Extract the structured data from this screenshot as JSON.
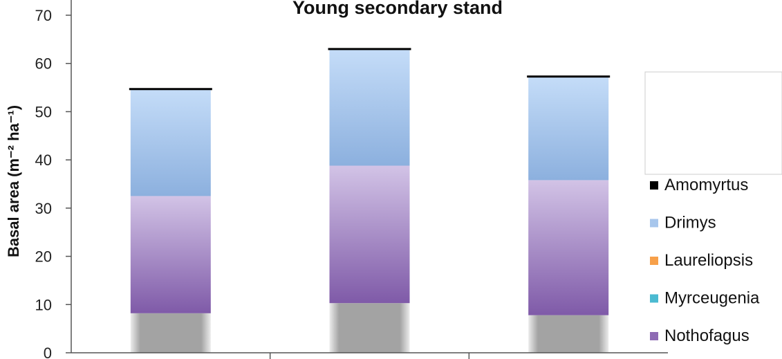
{
  "chart_data": {
    "type": "bar",
    "stacked": true,
    "title": "Young secondary stand",
    "xlabel": "",
    "ylabel": "Basal area (m⁻² ha⁻¹)",
    "ylim": [
      0,
      70
    ],
    "yticks": [
      0,
      10,
      20,
      30,
      40,
      50,
      60,
      70
    ],
    "categories": [
      "",
      "",
      ""
    ],
    "series": [
      {
        "name": "",
        "color": "#a0a0a0",
        "values": [
          8.2,
          10.3,
          7.8
        ]
      },
      {
        "name": "Nothofagus",
        "color": "#8e6bb4",
        "values": [
          24.3,
          28.5,
          28.0
        ]
      },
      {
        "name": "Myrceugenia",
        "color": "#4bbad1",
        "values": [
          0,
          0,
          0
        ]
      },
      {
        "name": "Laureliopsis",
        "color": "#f7a04a",
        "values": [
          0,
          0,
          0
        ]
      },
      {
        "name": "Drimys",
        "color": "#a7c6ec",
        "values": [
          22.0,
          24.0,
          21.3
        ]
      },
      {
        "name": "Amomyrtus",
        "color": "#000000",
        "values": [
          0.4,
          0.4,
          0.4
        ]
      }
    ],
    "legend": {
      "position": "right",
      "items": [
        "Amomyrtus",
        "Drimys",
        "Laureliopsis",
        "Myrceugenia",
        "Nothofagus"
      ]
    },
    "grid": false
  }
}
